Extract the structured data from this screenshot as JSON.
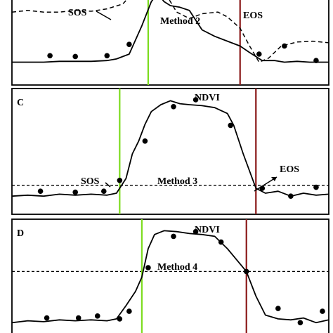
{
  "chart_data": [
    {
      "type": "line",
      "panel": "",
      "method_label": "Method 2",
      "sos_label": "SOS",
      "eos_label": "EOS",
      "series": [
        {
          "values_x": [
            0,
            0.05,
            0.1,
            0.15,
            0.2,
            0.25,
            0.3,
            0.33,
            0.37,
            0.41,
            0.44,
            0.46,
            0.48,
            0.5,
            0.53,
            0.56,
            0.6,
            0.64,
            0.68,
            0.72,
            0.75,
            0.79,
            0.83,
            0.86,
            0.9,
            0.94,
            0.98,
            1.0
          ],
          "values_y": [
            0.1,
            0.1,
            0.1,
            0.11,
            0.11,
            0.11,
            0.12,
            0.14,
            0.2,
            0.55,
            0.85,
            0.95,
            0.85,
            0.8,
            0.78,
            0.74,
            0.5,
            0.42,
            0.36,
            0.3,
            0.22,
            0.12,
            0.12,
            0.1,
            0.11,
            0.1,
            0.1,
            0.1
          ]
        },
        {
          "name_dashed": true,
          "values_x": [
            0,
            0.05,
            0.1,
            0.15,
            0.2,
            0.25,
            0.3,
            0.35,
            0.38,
            0.41,
            0.44,
            0.48,
            0.52,
            0.56,
            0.6,
            0.65,
            0.68,
            0.72,
            0.75,
            0.78,
            0.81,
            0.85,
            0.9,
            0.95,
            1.0
          ],
          "values_y": [
            0.72,
            0.74,
            0.72,
            0.72,
            0.74,
            0.73,
            0.76,
            0.82,
            0.95,
            0.96,
            0.98,
            0.98,
            0.72,
            0.64,
            0.7,
            0.72,
            0.66,
            0.52,
            0.3,
            0.1,
            0.15,
            0.3,
            0.35,
            0.36,
            0.34
          ]
        }
      ],
      "dots": {
        "x": [
          0.12,
          0.2,
          0.3,
          0.37,
          0.78,
          0.86,
          0.96
        ],
        "y": [
          0.18,
          0.17,
          0.18,
          0.32,
          0.2,
          0.3,
          0.12
        ]
      },
      "sos_x": 0.43,
      "eos_x": 0.72
    },
    {
      "type": "line",
      "panel": "C",
      "series_label": "NDVI",
      "method_label": "Method 3",
      "sos_label": "SOS",
      "eos_label": "EOS",
      "threshold_y": 0.13,
      "sos_x": 0.34,
      "eos_x": 0.77,
      "curve": {
        "x": [
          0,
          0.05,
          0.1,
          0.15,
          0.2,
          0.25,
          0.3,
          0.33,
          0.36,
          0.38,
          0.4,
          0.42,
          0.44,
          0.47,
          0.5,
          0.53,
          0.56,
          0.6,
          0.64,
          0.68,
          0.7,
          0.73,
          0.77,
          0.8,
          0.84,
          0.88,
          0.92,
          0.96,
          1.0
        ],
        "y": [
          0.02,
          0.03,
          0.02,
          0.04,
          0.03,
          0.04,
          0.03,
          0.05,
          0.2,
          0.45,
          0.58,
          0.75,
          0.88,
          0.95,
          0.99,
          0.96,
          0.95,
          0.94,
          0.92,
          0.86,
          0.74,
          0.45,
          0.1,
          0.05,
          0.07,
          0.02,
          0.05,
          0.03,
          0.04
        ]
      },
      "dots": {
        "x": [
          0.09,
          0.2,
          0.29,
          0.34,
          0.42,
          0.51,
          0.58,
          0.69,
          0.79,
          0.88,
          0.96
        ],
        "y": [
          0.07,
          0.06,
          0.07,
          0.18,
          0.58,
          0.93,
          1.0,
          0.74,
          0.1,
          0.02,
          0.11
        ]
      }
    },
    {
      "type": "line",
      "panel": "D",
      "series_label": "NDVI",
      "method_label": "Method 4",
      "threshold_y": 0.56,
      "sos_x": 0.41,
      "eos_x": 0.74,
      "curve": {
        "x": [
          0,
          0.05,
          0.1,
          0.15,
          0.2,
          0.25,
          0.3,
          0.33,
          0.36,
          0.39,
          0.41,
          0.43,
          0.45,
          0.48,
          0.52,
          0.56,
          0.6,
          0.64,
          0.68,
          0.71,
          0.74,
          0.77,
          0.8,
          0.84,
          0.88,
          0.92,
          0.96,
          1.0
        ],
        "y": [
          0.02,
          0.04,
          0.03,
          0.05,
          0.04,
          0.05,
          0.04,
          0.06,
          0.2,
          0.35,
          0.5,
          0.8,
          0.95,
          0.99,
          0.98,
          0.96,
          0.95,
          0.93,
          0.8,
          0.68,
          0.56,
          0.3,
          0.1,
          0.06,
          0.05,
          0.07,
          0.02,
          0.05
        ]
      },
      "dots": {
        "x": [
          0.11,
          0.21,
          0.27,
          0.34,
          0.37,
          0.43,
          0.51,
          0.58,
          0.66,
          0.74,
          0.84,
          0.91,
          0.98
        ],
        "y": [
          0.07,
          0.07,
          0.09,
          0.06,
          0.14,
          0.6,
          0.93,
          0.98,
          0.87,
          0.56,
          0.17,
          0.02,
          0.14
        ]
      }
    }
  ]
}
